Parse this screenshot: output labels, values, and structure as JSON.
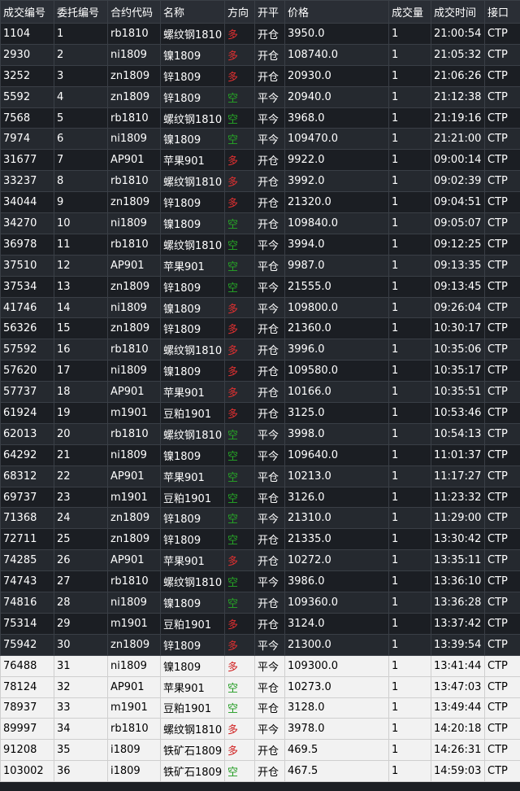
{
  "headers": [
    "成交编号",
    "委托编号",
    "合约代码",
    "名称",
    "方向",
    "开平",
    "价格",
    "成交量",
    "成交时间",
    "接口"
  ],
  "colors": {
    "long": "#e03030",
    "short": "#26a826"
  },
  "rows": [
    [
      "1104",
      "1",
      "rb1810",
      "螺纹钢1810",
      "多",
      "开仓",
      "3950.0",
      "1",
      "21:00:54",
      "CTP"
    ],
    [
      "2930",
      "2",
      "ni1809",
      "镍1809",
      "多",
      "开仓",
      "108740.0",
      "1",
      "21:05:32",
      "CTP"
    ],
    [
      "3252",
      "3",
      "zn1809",
      "锌1809",
      "多",
      "开仓",
      "20930.0",
      "1",
      "21:06:26",
      "CTP"
    ],
    [
      "5592",
      "4",
      "zn1809",
      "锌1809",
      "空",
      "平今",
      "20940.0",
      "1",
      "21:12:38",
      "CTP"
    ],
    [
      "7568",
      "5",
      "rb1810",
      "螺纹钢1810",
      "空",
      "平今",
      "3968.0",
      "1",
      "21:19:16",
      "CTP"
    ],
    [
      "7974",
      "6",
      "ni1809",
      "镍1809",
      "空",
      "平今",
      "109470.0",
      "1",
      "21:21:00",
      "CTP"
    ],
    [
      "31677",
      "7",
      "AP901",
      "苹果901",
      "多",
      "开仓",
      "9922.0",
      "1",
      "09:00:14",
      "CTP"
    ],
    [
      "33237",
      "8",
      "rb1810",
      "螺纹钢1810",
      "多",
      "开仓",
      "3992.0",
      "1",
      "09:02:39",
      "CTP"
    ],
    [
      "34044",
      "9",
      "zn1809",
      "锌1809",
      "多",
      "开仓",
      "21320.0",
      "1",
      "09:04:51",
      "CTP"
    ],
    [
      "34270",
      "10",
      "ni1809",
      "镍1809",
      "空",
      "开仓",
      "109840.0",
      "1",
      "09:05:07",
      "CTP"
    ],
    [
      "36978",
      "11",
      "rb1810",
      "螺纹钢1810",
      "空",
      "平今",
      "3994.0",
      "1",
      "09:12:25",
      "CTP"
    ],
    [
      "37510",
      "12",
      "AP901",
      "苹果901",
      "空",
      "平仓",
      "9987.0",
      "1",
      "09:13:35",
      "CTP"
    ],
    [
      "37534",
      "13",
      "zn1809",
      "锌1809",
      "空",
      "平今",
      "21555.0",
      "1",
      "09:13:45",
      "CTP"
    ],
    [
      "41746",
      "14",
      "ni1809",
      "镍1809",
      "多",
      "平今",
      "109800.0",
      "1",
      "09:26:04",
      "CTP"
    ],
    [
      "56326",
      "15",
      "zn1809",
      "锌1809",
      "多",
      "开仓",
      "21360.0",
      "1",
      "10:30:17",
      "CTP"
    ],
    [
      "57592",
      "16",
      "rb1810",
      "螺纹钢1810",
      "多",
      "开仓",
      "3996.0",
      "1",
      "10:35:06",
      "CTP"
    ],
    [
      "57620",
      "17",
      "ni1809",
      "镍1809",
      "多",
      "开仓",
      "109580.0",
      "1",
      "10:35:17",
      "CTP"
    ],
    [
      "57737",
      "18",
      "AP901",
      "苹果901",
      "多",
      "开仓",
      "10166.0",
      "1",
      "10:35:51",
      "CTP"
    ],
    [
      "61924",
      "19",
      "m1901",
      "豆粕1901",
      "多",
      "开仓",
      "3125.0",
      "1",
      "10:53:46",
      "CTP"
    ],
    [
      "62013",
      "20",
      "rb1810",
      "螺纹钢1810",
      "空",
      "平今",
      "3998.0",
      "1",
      "10:54:13",
      "CTP"
    ],
    [
      "64292",
      "21",
      "ni1809",
      "镍1809",
      "空",
      "平今",
      "109640.0",
      "1",
      "11:01:37",
      "CTP"
    ],
    [
      "68312",
      "22",
      "AP901",
      "苹果901",
      "空",
      "平仓",
      "10213.0",
      "1",
      "11:17:27",
      "CTP"
    ],
    [
      "69737",
      "23",
      "m1901",
      "豆粕1901",
      "空",
      "平仓",
      "3126.0",
      "1",
      "11:23:32",
      "CTP"
    ],
    [
      "71368",
      "24",
      "zn1809",
      "锌1809",
      "空",
      "平今",
      "21310.0",
      "1",
      "11:29:00",
      "CTP"
    ],
    [
      "72711",
      "25",
      "zn1809",
      "锌1809",
      "空",
      "开仓",
      "21335.0",
      "1",
      "13:30:42",
      "CTP"
    ],
    [
      "74285",
      "26",
      "AP901",
      "苹果901",
      "多",
      "开仓",
      "10272.0",
      "1",
      "13:35:11",
      "CTP"
    ],
    [
      "74743",
      "27",
      "rb1810",
      "螺纹钢1810",
      "空",
      "平今",
      "3986.0",
      "1",
      "13:36:10",
      "CTP"
    ],
    [
      "74816",
      "28",
      "ni1809",
      "镍1809",
      "空",
      "开仓",
      "109360.0",
      "1",
      "13:36:28",
      "CTP"
    ],
    [
      "75314",
      "29",
      "m1901",
      "豆粕1901",
      "多",
      "开仓",
      "3124.0",
      "1",
      "13:37:42",
      "CTP"
    ],
    [
      "75942",
      "30",
      "zn1809",
      "锌1809",
      "多",
      "平今",
      "21300.0",
      "1",
      "13:39:54",
      "CTP"
    ],
    [
      "76488",
      "31",
      "ni1809",
      "镍1809",
      "多",
      "平今",
      "109300.0",
      "1",
      "13:41:44",
      "CTP"
    ],
    [
      "78124",
      "32",
      "AP901",
      "苹果901",
      "空",
      "平仓",
      "10273.0",
      "1",
      "13:47:03",
      "CTP"
    ],
    [
      "78937",
      "33",
      "m1901",
      "豆粕1901",
      "空",
      "平仓",
      "3128.0",
      "1",
      "13:49:44",
      "CTP"
    ],
    [
      "89997",
      "34",
      "rb1810",
      "螺纹钢1810",
      "多",
      "平今",
      "3978.0",
      "1",
      "14:20:18",
      "CTP"
    ],
    [
      "91208",
      "35",
      "i1809",
      "铁矿石1809",
      "多",
      "开仓",
      "469.5",
      "1",
      "14:26:31",
      "CTP"
    ],
    [
      "103002",
      "36",
      "i1809",
      "铁矿石1809",
      "空",
      "开仓",
      "467.5",
      "1",
      "14:59:03",
      "CTP"
    ]
  ]
}
